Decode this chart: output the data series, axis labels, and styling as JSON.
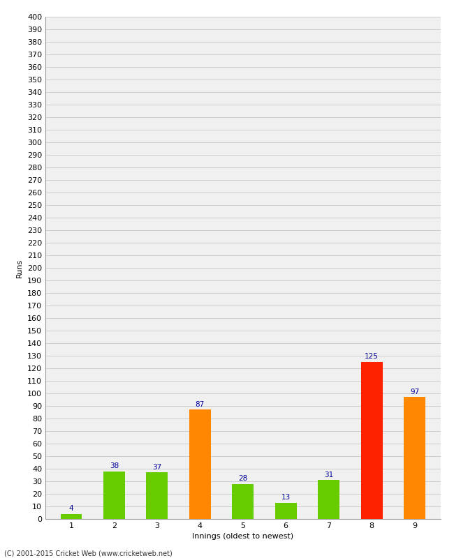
{
  "categories": [
    "1",
    "2",
    "3",
    "4",
    "5",
    "6",
    "7",
    "8",
    "9"
  ],
  "values": [
    4,
    38,
    37,
    87,
    28,
    13,
    31,
    125,
    97
  ],
  "bar_colors": [
    "#66cc00",
    "#66cc00",
    "#66cc00",
    "#ff8800",
    "#66cc00",
    "#66cc00",
    "#66cc00",
    "#ff2200",
    "#ff8800"
  ],
  "xlabel": "Innings (oldest to newest)",
  "ylabel": "Runs",
  "ylim": [
    0,
    400
  ],
  "ytick_step": 10,
  "background_color": "#ffffff",
  "plot_bg_color": "#f0f0f0",
  "grid_color": "#cccccc",
  "label_color": "#000099",
  "label_fontsize": 7.5,
  "axis_fontsize": 8,
  "bar_width": 0.5,
  "footer": "(C) 2001-2015 Cricket Web (www.cricketweb.net)"
}
